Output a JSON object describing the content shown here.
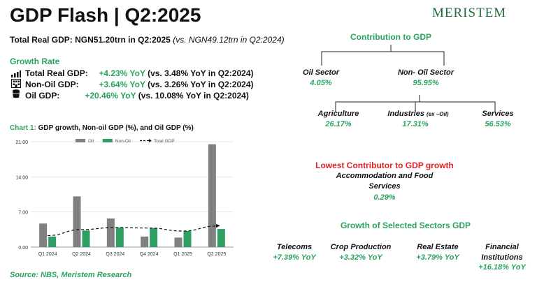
{
  "header": {
    "title": "GDP Flash | Q2:2025",
    "logo": "MERISTEM"
  },
  "summary": {
    "label": "Total Real GDP:  NGN51.20trn in Q2:2025",
    "comparison": "(vs. NGN49.12trn in Q2:2024)"
  },
  "growth_rate": {
    "heading": "Growth Rate",
    "items": [
      {
        "icon": "bar-chart-icon",
        "label": "Total Real GDP:",
        "value": "+4.23% YoY",
        "comparison": "(vs. 3.48% YoY in Q2:2024)"
      },
      {
        "icon": "building-icon",
        "label": "Non-Oil GDP:",
        "value": "+3.64% YoY",
        "comparison": "(vs. 3.26% YoY in Q2:2024)"
      },
      {
        "icon": "oil-barrel-icon",
        "label": "Oil GDP:",
        "value": "+20.46% YoY",
        "comparison": "(vs. 10.08% YoY in Q2:2024)"
      }
    ]
  },
  "chart_title": {
    "prefix": "Chart 1:",
    "text": "GDP growth, Non-oil GDP (%), and Oil GDP (%)"
  },
  "chart_data": {
    "type": "bar",
    "categories": [
      "Q1 2024",
      "Q2 2024",
      "Q3 2024",
      "Q4 2024",
      "Q1 2025",
      "Q2 2025"
    ],
    "series": [
      {
        "name": "Oil",
        "type": "bar",
        "color": "#808080",
        "values": [
          4.7,
          10.1,
          5.7,
          2.1,
          1.9,
          20.5
        ]
      },
      {
        "name": "Non-Oil",
        "type": "bar",
        "color": "#2e9e62",
        "values": [
          2.1,
          3.3,
          3.9,
          3.8,
          3.2,
          3.6
        ]
      },
      {
        "name": "Total GDP",
        "type": "line",
        "color": "#111111",
        "values": [
          2.3,
          3.5,
          3.9,
          3.8,
          3.2,
          4.2
        ]
      }
    ],
    "ylim": [
      0,
      21
    ],
    "yticks": [
      "0.00",
      "7.00",
      "14.00",
      "21.00"
    ],
    "grid": true,
    "legend": "top"
  },
  "source": "Source: NBS, Meristem Research",
  "contribution": {
    "heading": "Contribution to GDP",
    "oil": {
      "label": "Oil Sector",
      "value": "4.05%"
    },
    "non_oil": {
      "label": "Non- Oil Sector",
      "value": "95.95%"
    },
    "agriculture": {
      "label": "Agriculture",
      "value": "26.17%"
    },
    "industries": {
      "label": "Industries",
      "note": "(ex –Oil)",
      "value": "17.31%"
    },
    "services": {
      "label": "Services",
      "value": "56.53%"
    }
  },
  "lowest": {
    "heading": "Lowest Contributor to GDP growth",
    "line1": "Accommodation and Food",
    "line2": "Services",
    "value": "0.29%"
  },
  "selected": {
    "heading": "Growth of Selected Sectors GDP",
    "items": [
      {
        "label": "Telecoms",
        "value": "+7.39% YoY"
      },
      {
        "label": "Crop Production",
        "value": "+3.32% YoY"
      },
      {
        "label": "Real Estate",
        "value": "+3.79% YoY"
      },
      {
        "label": "Financial",
        "label2": "Institutions",
        "value": "+16.18% YoY"
      }
    ]
  }
}
